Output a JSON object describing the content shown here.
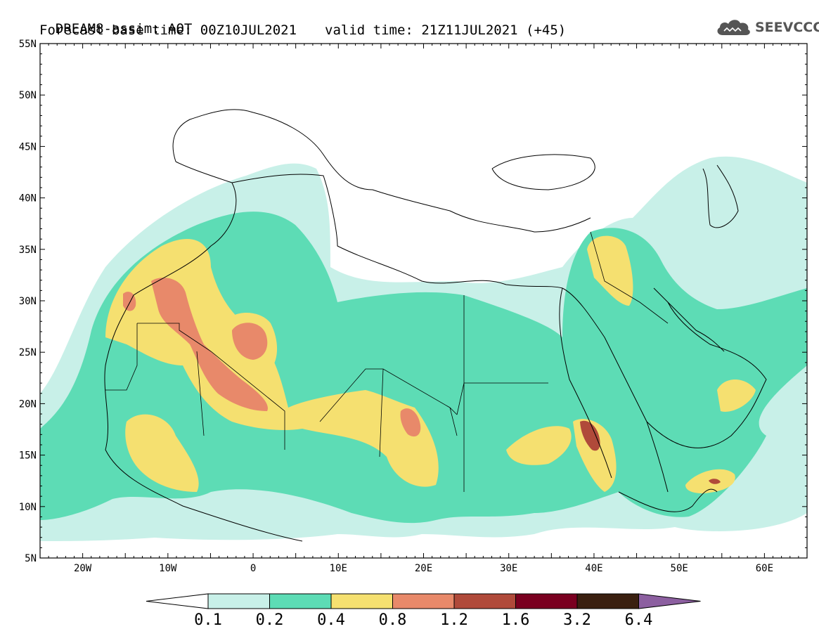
{
  "header": {
    "line1": "DREAM8-assim: AOT",
    "base_time": "Forecast base time: 00Z10JUL2021",
    "valid_time": "valid time: 21Z11JUL2021 (+45)"
  },
  "logo": {
    "text": "SEEVCCC",
    "icon": "cloud-icon"
  },
  "map": {
    "lon_range": [
      -25,
      65
    ],
    "lat_range": [
      5,
      55
    ],
    "lat_ticks": [
      "5N",
      "10N",
      "15N",
      "20N",
      "25N",
      "30N",
      "35N",
      "40N",
      "45N",
      "50N",
      "55N"
    ],
    "lon_ticks": [
      "20W",
      "10W",
      "0",
      "10E",
      "20E",
      "30E",
      "40E",
      "50E",
      "60E"
    ]
  },
  "colorbar": {
    "labels": [
      "0.1",
      "0.2",
      "0.4",
      "0.8",
      "1.2",
      "1.6",
      "3.2",
      "6.4"
    ],
    "colors": [
      "#ffffff",
      "#c8f0e8",
      "#5ddcb5",
      "#f5e070",
      "#e8896a",
      "#b04a3a",
      "#7a0020",
      "#3a2010",
      "#8c5fa0"
    ]
  }
}
